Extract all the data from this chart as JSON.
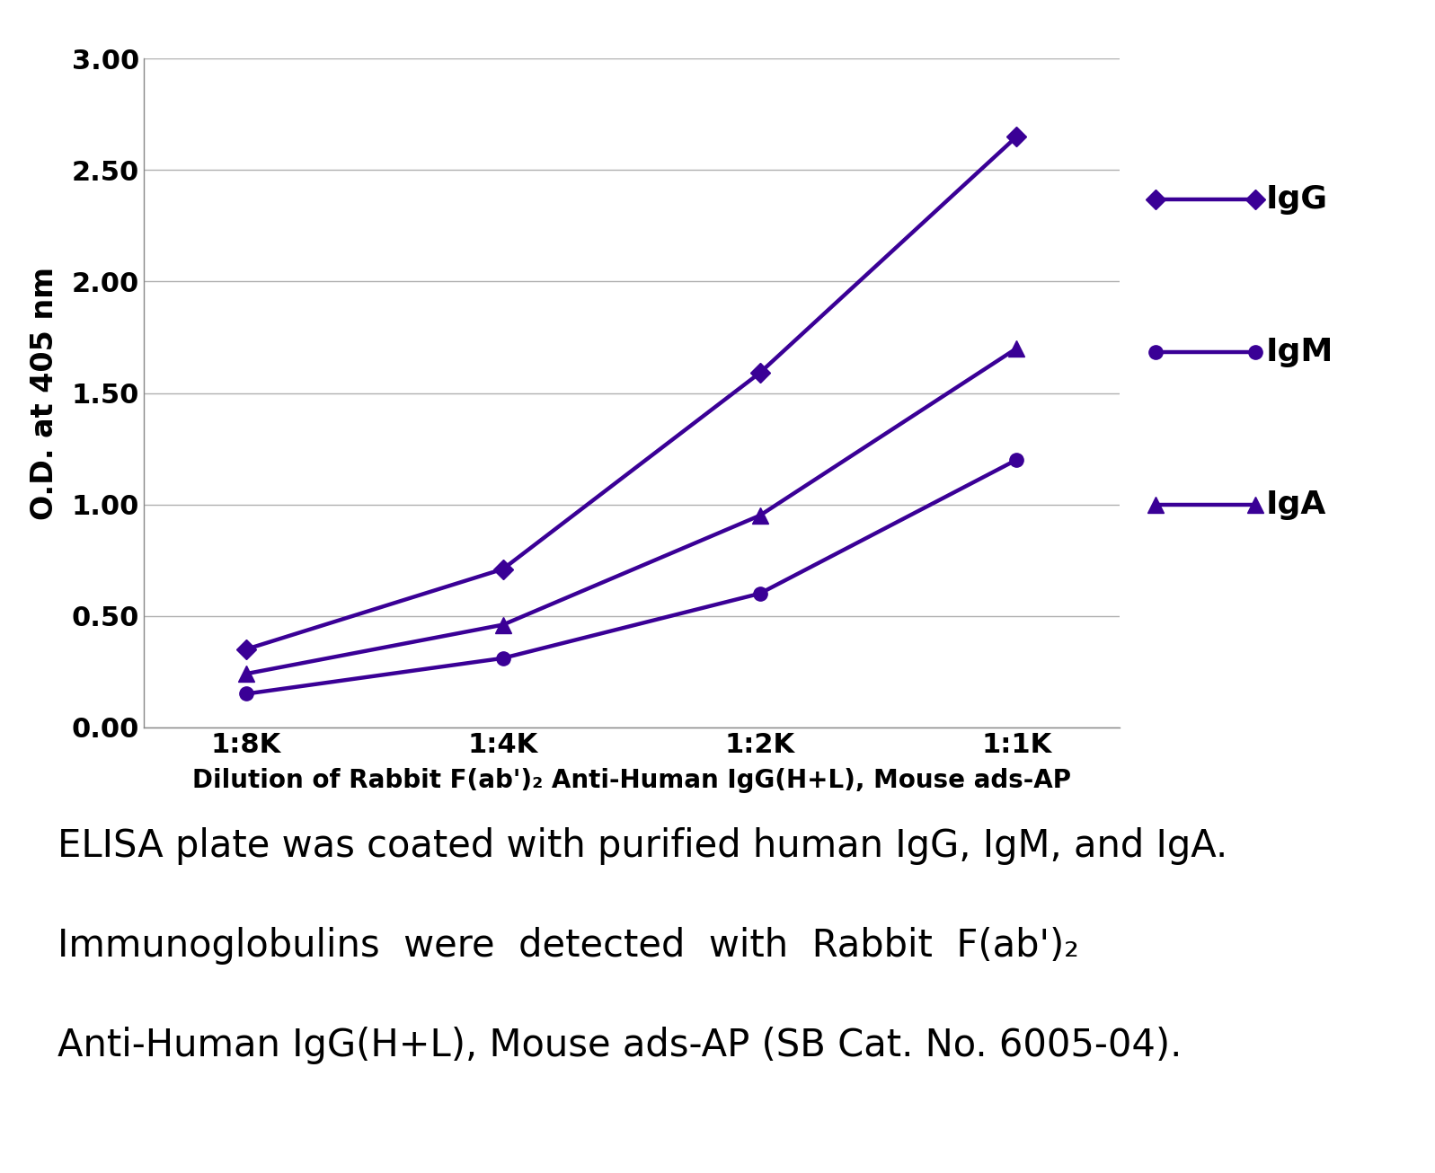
{
  "x_positions": [
    0,
    1,
    2,
    3
  ],
  "x_labels": [
    "1:8K",
    "1:4K",
    "1:2K",
    "1:1K"
  ],
  "IgG": [
    0.35,
    0.71,
    1.59,
    2.65
  ],
  "IgM": [
    0.15,
    0.31,
    0.6,
    1.2
  ],
  "IgA": [
    0.24,
    0.46,
    0.95,
    1.7
  ],
  "line_color": "#3a0096",
  "ylim": [
    0.0,
    3.0
  ],
  "yticks": [
    0.0,
    0.5,
    1.0,
    1.5,
    2.0,
    2.5,
    3.0
  ],
  "ylabel": "O.D. at 405 nm",
  "xlabel": "Dilution of Rabbit F(ab')₂ Anti-Human IgG(H+L), Mouse ads-AP",
  "legend_labels": [
    "IgG",
    "IgM",
    "IgA"
  ],
  "legend_markers": [
    "D",
    "o",
    "^"
  ],
  "annotation_line1": "ELISA plate was coated with purified human IgG, IgM, and IgA.",
  "annotation_line2": "Immunoglobulins  were  detected  with  Rabbit  F(ab')₂",
  "annotation_line3": "Anti-Human IgG(H+L), Mouse ads-AP (SB Cat. No. 6005-04).",
  "grid_color": "#b0b0b0",
  "background_color": "#ffffff",
  "linewidth": 3.2,
  "markersize": 11,
  "tick_fontsize": 22,
  "ylabel_fontsize": 24,
  "xlabel_fontsize": 20,
  "legend_fontsize": 26,
  "annotation_fontsize": 30
}
